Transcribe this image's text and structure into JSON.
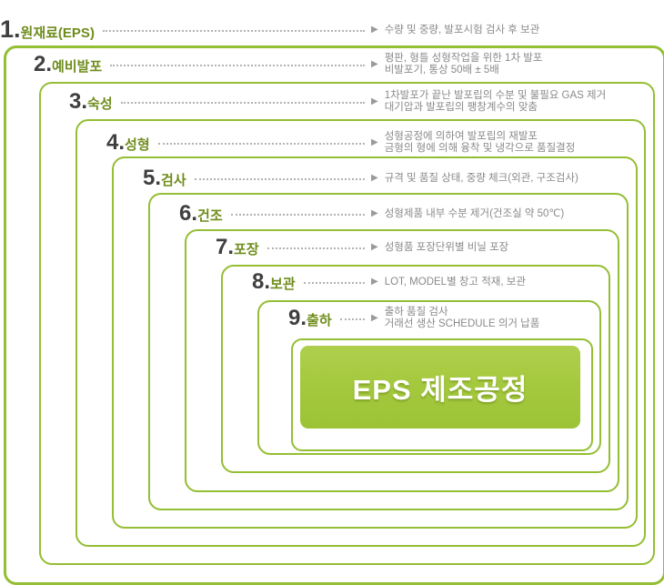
{
  "diagram": {
    "center_title": "EPS 제조공정",
    "leader_arrow": "▶",
    "colors": {
      "box_border": "#94be33",
      "center_fill": "#a5c93e",
      "step_number": "#3f3f3f",
      "step_name": "#6f8d1d",
      "description": "#8a8a8a"
    },
    "steps": [
      {
        "num": "1.",
        "name": "원재료(EPS)",
        "desc1": "수량 및 중량, 발포시험 검사 후 보관",
        "desc2": ""
      },
      {
        "num": "2.",
        "name": "예비발포",
        "desc1": "평판, 형틀 성형작업을 위한 1차 발포",
        "desc2": "비발포기, 통상 50배 ± 5배"
      },
      {
        "num": "3.",
        "name": "숙성",
        "desc1": "1차발포가 끝난 발포립의 수분 및 불필요 GAS 제거",
        "desc2": "대기압과 발포립의 팽창계수의 맞춤"
      },
      {
        "num": "4.",
        "name": "성형",
        "desc1": "성형공정에 의하여 발포립의 재발포",
        "desc2": "금형의 형에 의해 융착 및 냉각으로 품질결정"
      },
      {
        "num": "5.",
        "name": "검사",
        "desc1": "규격 및 품질 상태, 중량 체크(외관, 구조검사)",
        "desc2": ""
      },
      {
        "num": "6.",
        "name": "건조",
        "desc1": "성형제품 내부 수분 제거(건조실 약 50℃)",
        "desc2": ""
      },
      {
        "num": "7.",
        "name": "포장",
        "desc1": "성형품 포장단위별 비닐 포장",
        "desc2": ""
      },
      {
        "num": "8.",
        "name": "보관",
        "desc1": "LOT, MODEL별 창고 적재, 보관",
        "desc2": ""
      },
      {
        "num": "9.",
        "name": "출하",
        "desc1": "출하 품질 검사",
        "desc2": "거래선 생산 SCHEDULE 의거 납품"
      }
    ]
  }
}
